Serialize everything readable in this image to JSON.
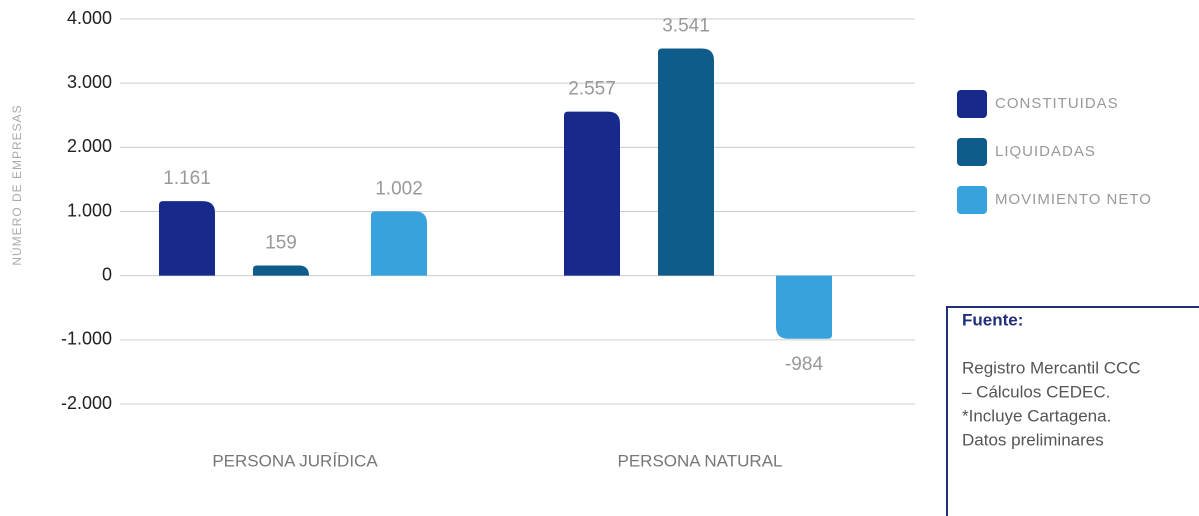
{
  "chart_data": {
    "type": "bar",
    "y_label": "NÚMERO DE EMPRESAS",
    "categories": [
      "PERSONA JURÍDICA",
      "PERSONA NATURAL"
    ],
    "series": [
      {
        "name": "CONSTITUIDAS",
        "color": "#172a8c",
        "values": [
          1161,
          2557
        ],
        "value_labels": [
          "1.161",
          "2.557"
        ]
      },
      {
        "name": "LIQUIDADAS",
        "color": "#0f5b8a",
        "values": [
          159,
          3541
        ],
        "value_labels": [
          "159",
          "3.541"
        ]
      },
      {
        "name": "MOVIMIENTO NETO",
        "color": "#38a2dc",
        "values": [
          1002,
          -984
        ],
        "value_labels": [
          "1.002",
          "-984"
        ]
      }
    ],
    "ylim": [
      -2000,
      4000
    ],
    "yticks": [
      {
        "value": -2000,
        "label": "-2.000"
      },
      {
        "value": -1000,
        "label": "-1.000"
      },
      0,
      {
        "value": 1000,
        "label": "1.000"
      },
      {
        "value": 2000,
        "label": "2.000"
      },
      {
        "value": 3000,
        "label": "3.000"
      },
      {
        "value": 4000,
        "label": "4.000"
      }
    ],
    "grid": true,
    "legend": "right"
  },
  "source": {
    "title": "Fuente:",
    "lines": [
      "Registro Mercantil CCC",
      "– Cálculos CEDEC.",
      "*Incluye Cartagena.",
      "Datos preliminares"
    ]
  }
}
